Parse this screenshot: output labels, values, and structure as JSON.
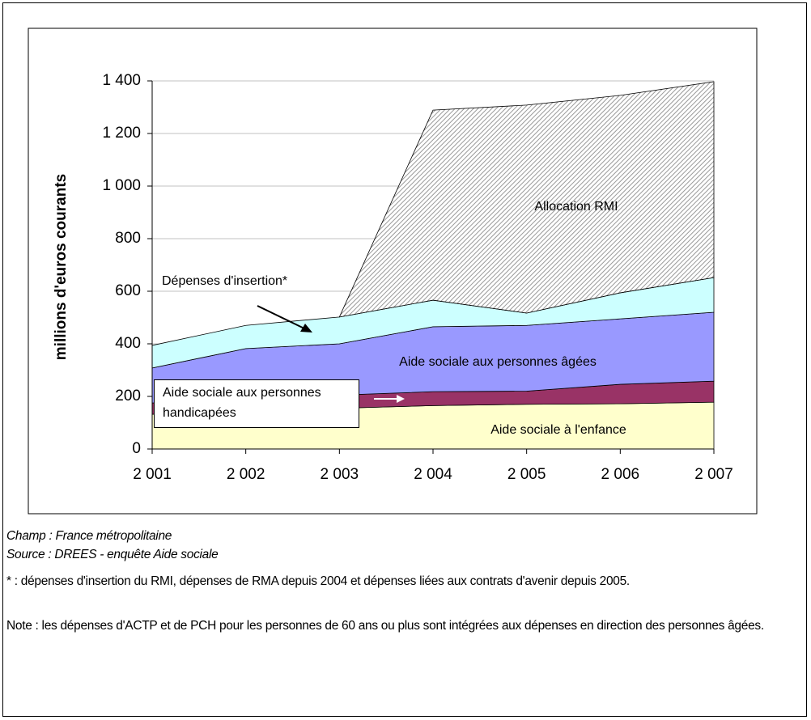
{
  "chart_data": {
    "type": "area",
    "stacked": true,
    "ylabel": "millions d'euros courants",
    "categories": [
      "2 001",
      "2 002",
      "2 003",
      "2 004",
      "2 005",
      "2 006",
      "2 007"
    ],
    "series": [
      {
        "name": "Aide sociale à l'enfance",
        "color": "#ffffcc",
        "values": [
          132,
          145,
          155,
          165,
          170,
          172,
          178
        ]
      },
      {
        "name": "Aide sociale aux personnes handicapées",
        "color": "#993366",
        "values": [
          43,
          50,
          50,
          53,
          50,
          74,
          80
        ]
      },
      {
        "name": "Aide sociale aux personnes âgées",
        "color": "#9999ff",
        "values": [
          133,
          187,
          195,
          247,
          250,
          249,
          262
        ]
      },
      {
        "name": "Dépenses d'insertion*",
        "color": "#ccffff",
        "values": [
          86,
          88,
          102,
          101,
          47,
          99,
          132
        ]
      },
      {
        "name": "Allocation RMI",
        "color": "#999999",
        "pattern": "hatch",
        "values": [
          null,
          null,
          0,
          723,
          791,
          751,
          745
        ]
      }
    ],
    "ylim": [
      0,
      1400
    ],
    "yticks": [
      0,
      200,
      400,
      600,
      800,
      {
        "value": 1000,
        "label": "1 000"
      },
      {
        "value": 1200,
        "label": "1 200"
      },
      {
        "value": 1400,
        "label": "1 400"
      }
    ],
    "grid": true
  },
  "notes": {
    "champ": "Champ : France métropolitaine",
    "source": "Source : DREES - enquête Aide sociale",
    "footnote": "* : dépenses d'insertion du RMI, dépenses de RMA depuis 2004 et dépenses liées aux contrats d'avenir depuis 2005.",
    "note": "Note : les dépenses d'ACTP et de PCH pour les personnes de 60 ans ou plus sont intégrées aux dépenses en direction des personnes âgées."
  }
}
